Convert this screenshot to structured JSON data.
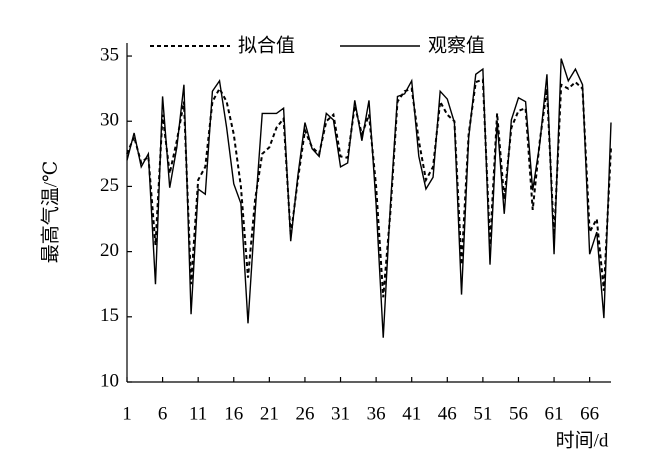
{
  "chart_data": {
    "type": "line",
    "x_label": "时间/d",
    "y_label": "最高气温/℃",
    "x": [
      1,
      2,
      3,
      4,
      5,
      6,
      7,
      8,
      9,
      10,
      11,
      12,
      13,
      14,
      15,
      16,
      17,
      18,
      19,
      20,
      21,
      22,
      23,
      24,
      25,
      26,
      27,
      28,
      29,
      30,
      31,
      32,
      33,
      34,
      35,
      36,
      37,
      38,
      39,
      40,
      41,
      42,
      43,
      44,
      45,
      46,
      47,
      48,
      49,
      50,
      51,
      52,
      53,
      54,
      55,
      56,
      57,
      58,
      59,
      60,
      61,
      62,
      63,
      64,
      65,
      66,
      67,
      68,
      69
    ],
    "series": [
      {
        "name": "拟合值",
        "color": "#000000",
        "dash": "4,3",
        "values": [
          27.5,
          28.8,
          26.8,
          27.3,
          20.5,
          30.5,
          26,
          28.5,
          31.5,
          17.5,
          25.5,
          26.5,
          31.5,
          32.5,
          31.5,
          29,
          25,
          18,
          24,
          27.5,
          28,
          29.5,
          30.2,
          21.2,
          25.5,
          29.3,
          28,
          27.5,
          30,
          30.5,
          27.3,
          27.2,
          31.2,
          29,
          30.5,
          25,
          16.5,
          23,
          31.5,
          32.3,
          32.5,
          28.5,
          25.5,
          26.5,
          31.5,
          30.5,
          30,
          19,
          29,
          33,
          33.2,
          20.5,
          30.6,
          24,
          29.5,
          30.8,
          31,
          23.2,
          28.5,
          32.5,
          21,
          32.8,
          32.5,
          33,
          32.5,
          21.5,
          22.5,
          17,
          28
        ]
      },
      {
        "name": "观察值",
        "color": "#000000",
        "dash": "none",
        "values": [
          27,
          29.1,
          26.5,
          27.5,
          17.5,
          31.9,
          24.9,
          28,
          32.8,
          15.2,
          24.8,
          24.4,
          32.3,
          33.1,
          29.5,
          25.2,
          23.7,
          14.5,
          23,
          30.6,
          30.6,
          30.6,
          31,
          20.8,
          25.8,
          29.9,
          27.9,
          27.3,
          30.6,
          30.1,
          26.5,
          26.8,
          31.6,
          28.5,
          31.6,
          23.6,
          13.4,
          23.5,
          31.9,
          32.1,
          33.1,
          27.3,
          24.8,
          25.7,
          32.3,
          31.7,
          29.9,
          16.7,
          28.7,
          33.6,
          34,
          19,
          30,
          22.9,
          30.1,
          31.8,
          31.5,
          24.7,
          28.3,
          33.6,
          19.8,
          34.8,
          33.1,
          34,
          32.8,
          19.8,
          21.5,
          14.9,
          29.9
        ]
      }
    ],
    "xlim": [
      1,
      69
    ],
    "xticks": [
      1,
      6,
      11,
      16,
      21,
      26,
      31,
      36,
      41,
      46,
      51,
      56,
      61,
      66
    ],
    "ylim": [
      10,
      36
    ],
    "yticks": [
      10,
      15,
      20,
      25,
      30,
      35
    ],
    "legend": "top"
  }
}
